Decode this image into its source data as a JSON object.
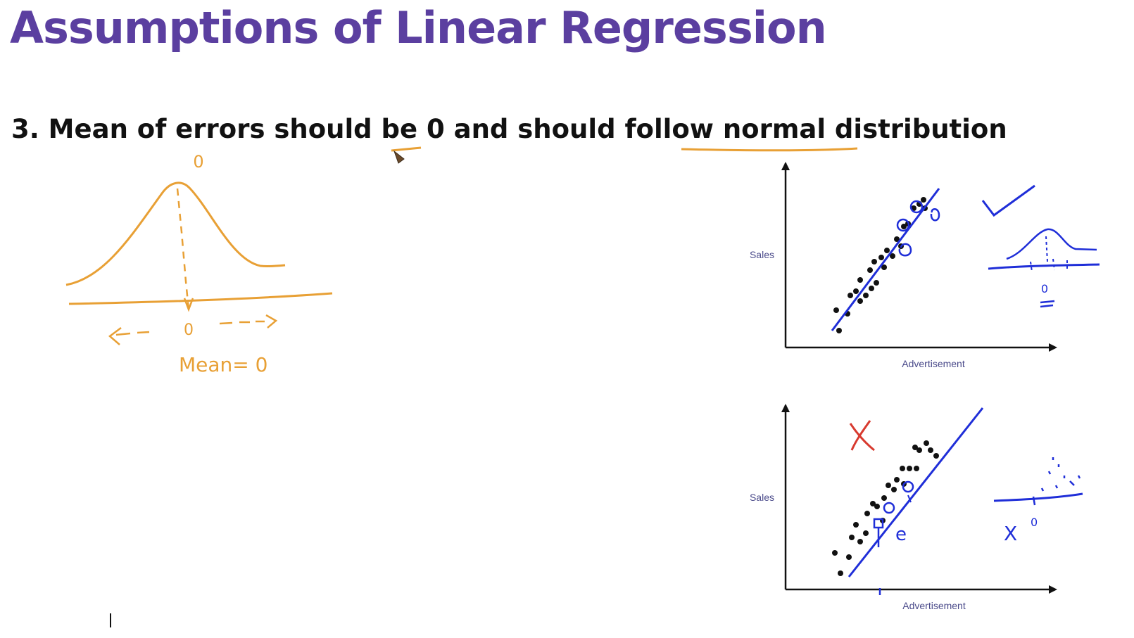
{
  "slide": {
    "title": "Assumptions of Linear Regression",
    "heading": "3. Mean of errors should be 0 and should follow normal distribution"
  },
  "annotations": {
    "zero_above_peak": "0",
    "zero_below_axis": "0",
    "mean_note": "Mean= 0",
    "dist_zero": "0",
    "dist_zero_marked": "0",
    "cross_mark": "X",
    "error_label": "e"
  },
  "plots": [
    {
      "ylabel": "Sales",
      "xlabel": "Advertisement"
    },
    {
      "ylabel": "Sales",
      "xlabel": "Advertisement"
    }
  ],
  "colors": {
    "title": "#5b3fa0",
    "heading": "#111111",
    "pen_orange": "#e8a035",
    "pen_blue": "#1f2ed8",
    "pen_red": "#d83a2f",
    "axis_label": "#4a4a8a",
    "points": "#111111"
  }
}
